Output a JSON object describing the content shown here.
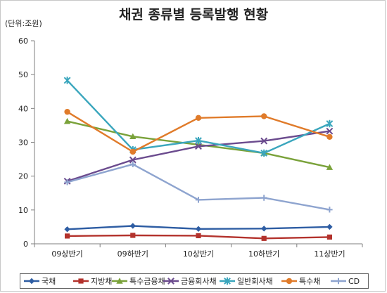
{
  "chart_data": {
    "type": "line",
    "title": "채권 종류별 등록발행 현황",
    "unit_label": "(단위:조원)",
    "categories": [
      "09상반기",
      "09하반기",
      "10상반기",
      "10하반기",
      "11상반기"
    ],
    "ylim": [
      0,
      60
    ],
    "yticks": [
      0,
      10,
      20,
      30,
      40,
      50,
      60
    ],
    "grid": false,
    "legend_position": "bottom",
    "series": [
      {
        "name": "국채",
        "color": "#2e5da3",
        "marker": "diamond",
        "values": [
          4.3,
          5.3,
          4.4,
          4.5,
          5.0
        ]
      },
      {
        "name": "지방채",
        "color": "#b3322c",
        "marker": "square",
        "values": [
          2.3,
          2.5,
          2.4,
          1.6,
          2.0
        ]
      },
      {
        "name": "특수금융채",
        "color": "#7aa23a",
        "marker": "triangle",
        "values": [
          36.2,
          31.7,
          29.3,
          26.8,
          22.6
        ]
      },
      {
        "name": "금융회사채",
        "color": "#6b4b8e",
        "marker": "x",
        "values": [
          18.5,
          24.8,
          28.8,
          30.4,
          33.3
        ]
      },
      {
        "name": "일반회사채",
        "color": "#3aa6bd",
        "marker": "star",
        "values": [
          48.3,
          27.8,
          30.5,
          26.8,
          35.5
        ]
      },
      {
        "name": "특수채",
        "color": "#e07b2a",
        "marker": "circle",
        "values": [
          39.0,
          27.2,
          37.2,
          37.7,
          31.6
        ]
      },
      {
        "name": "CD",
        "color": "#8ea4cf",
        "marker": "plus",
        "values": [
          18.2,
          23.5,
          13.0,
          13.6,
          10.1
        ]
      }
    ]
  }
}
